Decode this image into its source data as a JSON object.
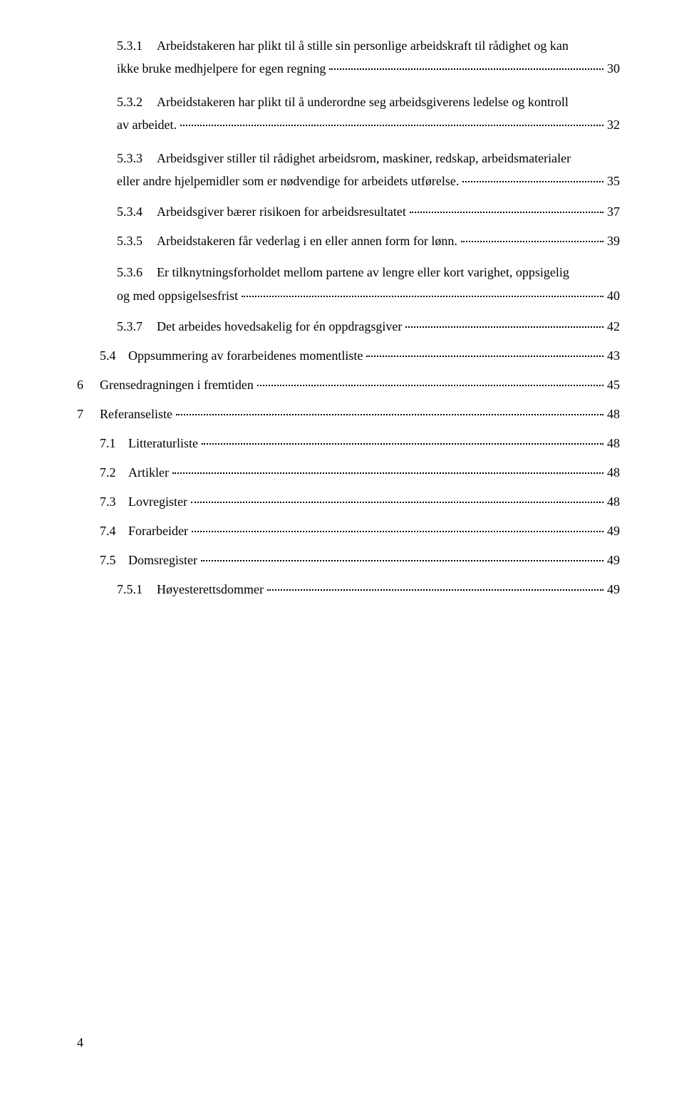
{
  "toc": {
    "e531": {
      "num": "5.3.1",
      "text_l1": "Arbeidstakeren har plikt til å stille sin personlige arbeidskraft til rådighet og kan",
      "text_l2": "ikke bruke medhjelpere for egen regning",
      "page": "30"
    },
    "e532": {
      "num": "5.3.2",
      "text_l1": "Arbeidstakeren har plikt til å underordne seg arbeidsgiverens ledelse og kontroll",
      "text_l2": "av arbeidet.",
      "page": "32"
    },
    "e533": {
      "num": "5.3.3",
      "text_l1": "Arbeidsgiver stiller til rådighet arbeidsrom, maskiner, redskap, arbeidsmaterialer",
      "text_l2": "eller andre hjelpemidler som er nødvendige for arbeidets utførelse.",
      "page": "35"
    },
    "e534": {
      "num": "5.3.4",
      "text": "Arbeidsgiver bærer risikoen for arbeidsresultatet",
      "page": "37"
    },
    "e535": {
      "num": "5.3.5",
      "text": "Arbeidstakeren får vederlag i en eller annen form for lønn.",
      "page": "39"
    },
    "e536": {
      "num": "5.3.6",
      "text_l1": "Er tilknytningsforholdet mellom partene av lengre eller kort varighet, oppsigelig",
      "text_l2": "og med oppsigelsesfrist",
      "page": "40"
    },
    "e537": {
      "num": "5.3.7",
      "text": "Det arbeides hovedsakelig for én oppdragsgiver",
      "page": "42"
    },
    "e54": {
      "num": "5.4",
      "text": "Oppsummering av forarbeidenes momentliste",
      "page": "43"
    },
    "e6": {
      "num": "6",
      "text": "Grensedragningen i fremtiden",
      "page": "45"
    },
    "e7": {
      "num": "7",
      "text": "Referanseliste",
      "page": "48"
    },
    "e71": {
      "num": "7.1",
      "text": "Litteraturliste",
      "page": "48"
    },
    "e72": {
      "num": "7.2",
      "text": "Artikler",
      "page": "48"
    },
    "e73": {
      "num": "7.3",
      "text": "Lovregister",
      "page": "48"
    },
    "e74": {
      "num": "7.4",
      "text": "Forarbeider",
      "page": "49"
    },
    "e75": {
      "num": "7.5",
      "text": "Domsregister",
      "page": "49"
    },
    "e751": {
      "num": "7.5.1",
      "text": "Høyesterettsdommer",
      "page": "49"
    }
  },
  "pageNumber": "4"
}
